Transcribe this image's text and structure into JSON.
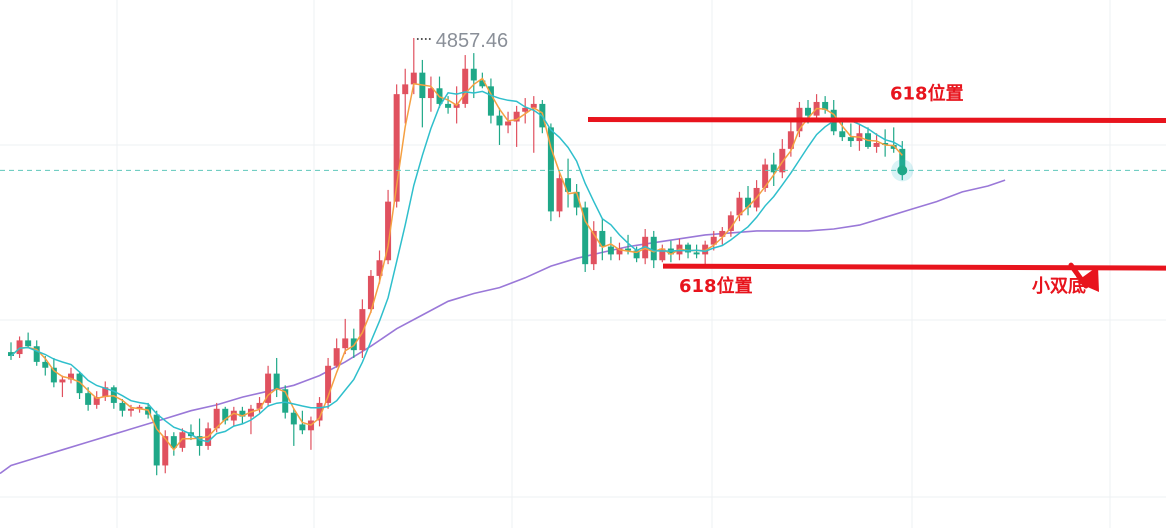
{
  "chart_data": {
    "type": "candlestick",
    "high_label": "4857.46",
    "annotations": {
      "top_level_label": "618位置",
      "bottom_level_label": "618位置",
      "pattern_label": "小双底"
    },
    "colors": {
      "up": "#e0515f",
      "down": "#1fa888",
      "ma_short": "#f5a042",
      "ma_mid": "#2fbfcc",
      "ma_long": "#9a78d8",
      "annotation": "#e8141d",
      "dashed": "#5fc8bb",
      "grid": "#eef0f3"
    },
    "candles": [
      [
        4536,
        4546,
        4528,
        4532
      ],
      [
        4534,
        4552,
        4530,
        4548
      ],
      [
        4548,
        4556,
        4540,
        4542
      ],
      [
        4542,
        4548,
        4522,
        4526
      ],
      [
        4526,
        4532,
        4512,
        4520
      ],
      [
        4520,
        4530,
        4500,
        4505
      ],
      [
        4505,
        4512,
        4490,
        4508
      ],
      [
        4508,
        4520,
        4504,
        4514
      ],
      [
        4514,
        4516,
        4488,
        4494
      ],
      [
        4494,
        4500,
        4476,
        4482
      ],
      [
        4482,
        4496,
        4478,
        4490
      ],
      [
        4490,
        4506,
        4486,
        4500
      ],
      [
        4500,
        4502,
        4478,
        4484
      ],
      [
        4484,
        4488,
        4470,
        4476
      ],
      [
        4476,
        4482,
        4470,
        4478
      ],
      [
        4478,
        4482,
        4474,
        4480
      ],
      [
        4480,
        4484,
        4468,
        4472
      ],
      [
        4472,
        4476,
        4410,
        4420
      ],
      [
        4420,
        4456,
        4412,
        4450
      ],
      [
        4450,
        4454,
        4430,
        4438
      ],
      [
        4438,
        4458,
        4434,
        4454
      ],
      [
        4454,
        4462,
        4446,
        4450
      ],
      [
        4450,
        4468,
        4430,
        4440
      ],
      [
        4440,
        4464,
        4436,
        4458
      ],
      [
        4458,
        4484,
        4454,
        4478
      ],
      [
        4478,
        4480,
        4462,
        4466
      ],
      [
        4466,
        4480,
        4460,
        4476
      ],
      [
        4476,
        4480,
        4462,
        4470
      ],
      [
        4470,
        4482,
        4452,
        4478
      ],
      [
        4478,
        4490,
        4474,
        4484
      ],
      [
        4484,
        4522,
        4480,
        4514
      ],
      [
        4514,
        4530,
        4490,
        4498
      ],
      [
        4498,
        4502,
        4468,
        4474
      ],
      [
        4474,
        4478,
        4440,
        4462
      ],
      [
        4462,
        4476,
        4452,
        4456
      ],
      [
        4456,
        4470,
        4436,
        4466
      ],
      [
        4466,
        4490,
        4460,
        4484
      ],
      [
        4484,
        4530,
        4478,
        4522
      ],
      [
        4522,
        4550,
        4520,
        4540
      ],
      [
        4540,
        4570,
        4534,
        4550
      ],
      [
        4550,
        4560,
        4530,
        4538
      ],
      [
        4538,
        4590,
        4530,
        4580
      ],
      [
        4580,
        4620,
        4576,
        4614
      ],
      [
        4614,
        4640,
        4606,
        4630
      ],
      [
        4630,
        4702,
        4626,
        4690
      ],
      [
        4690,
        4810,
        4684,
        4800
      ],
      [
        4800,
        4826,
        4770,
        4810
      ],
      [
        4810,
        4857.46,
        4800,
        4822
      ],
      [
        4822,
        4835,
        4766,
        4796
      ],
      [
        4796,
        4818,
        4782,
        4806
      ],
      [
        4806,
        4818,
        4786,
        4790
      ],
      [
        4790,
        4798,
        4780,
        4786
      ],
      [
        4786,
        4808,
        4770,
        4790
      ],
      [
        4790,
        4840,
        4786,
        4826
      ],
      [
        4826,
        4842,
        4796,
        4814
      ],
      [
        4814,
        4822,
        4806,
        4808
      ],
      [
        4808,
        4816,
        4770,
        4778
      ],
      [
        4778,
        4786,
        4748,
        4768
      ],
      [
        4768,
        4782,
        4760,
        4772
      ],
      [
        4772,
        4788,
        4746,
        4782
      ],
      [
        4782,
        4796,
        4770,
        4786
      ],
      [
        4786,
        4798,
        4740,
        4790
      ],
      [
        4790,
        4794,
        4760,
        4766
      ],
      [
        4766,
        4770,
        4670,
        4680
      ],
      [
        4680,
        4720,
        4674,
        4714
      ],
      [
        4714,
        4734,
        4684,
        4700
      ],
      [
        4700,
        4708,
        4676,
        4684
      ],
      [
        4684,
        4690,
        4618,
        4626
      ],
      [
        4626,
        4670,
        4620,
        4660
      ],
      [
        4660,
        4672,
        4630,
        4644
      ],
      [
        4644,
        4654,
        4630,
        4636
      ],
      [
        4636,
        4648,
        4630,
        4642
      ],
      [
        4642,
        4656,
        4636,
        4640
      ],
      [
        4640,
        4644,
        4628,
        4632
      ],
      [
        4632,
        4662,
        4626,
        4654
      ],
      [
        4654,
        4660,
        4622,
        4630
      ],
      [
        4630,
        4646,
        4628,
        4642
      ],
      [
        4642,
        4650,
        4628,
        4636
      ],
      [
        4636,
        4652,
        4630,
        4646
      ],
      [
        4646,
        4648,
        4632,
        4638
      ],
      [
        4638,
        4646,
        4632,
        4636
      ],
      [
        4636,
        4650,
        4626,
        4646
      ],
      [
        4646,
        4660,
        4640,
        4654
      ],
      [
        4654,
        4664,
        4646,
        4660
      ],
      [
        4660,
        4680,
        4654,
        4676
      ],
      [
        4676,
        4700,
        4670,
        4694
      ],
      [
        4694,
        4706,
        4676,
        4684
      ],
      [
        4684,
        4712,
        4680,
        4704
      ],
      [
        4704,
        4734,
        4700,
        4728
      ],
      [
        4728,
        4740,
        4706,
        4720
      ],
      [
        4720,
        4754,
        4714,
        4744
      ],
      [
        4744,
        4772,
        4736,
        4762
      ],
      [
        4762,
        4792,
        4756,
        4786
      ],
      [
        4786,
        4794,
        4770,
        4778
      ],
      [
        4778,
        4800,
        4774,
        4792
      ],
      [
        4792,
        4798,
        4780,
        4784
      ],
      [
        4784,
        4794,
        4758,
        4762
      ],
      [
        4762,
        4776,
        4752,
        4756
      ],
      [
        4756,
        4770,
        4746,
        4752
      ],
      [
        4752,
        4770,
        4742,
        4760
      ],
      [
        4760,
        4766,
        4744,
        4746
      ],
      [
        4746,
        4760,
        4740,
        4750
      ],
      [
        4750,
        4764,
        4736,
        4748
      ],
      [
        4748,
        4766,
        4740,
        4744
      ],
      [
        4744,
        4752,
        4712,
        4720
      ]
    ],
    "ma_long": [
      4420,
      4428,
      4436,
      4444,
      4452,
      4460,
      4468,
      4476,
      4482,
      4490,
      4496,
      4502,
      4512,
      4526,
      4542,
      4560,
      4574,
      4588,
      4596,
      4602,
      4612,
      4624,
      4632,
      4638,
      4644,
      4648,
      4652,
      4656,
      4658,
      4660,
      4660,
      4660,
      4662,
      4666,
      4674,
      4682,
      4690,
      4700,
      4706,
      4712
    ],
    "ma_long_x": [
      0,
      3,
      6,
      9,
      12,
      15,
      18,
      21,
      24,
      27,
      30,
      33,
      36,
      39,
      42,
      45,
      48,
      51,
      54,
      57,
      60,
      63,
      66,
      69,
      72,
      75,
      78,
      81,
      84,
      87,
      90,
      93,
      96,
      99,
      102,
      105,
      108,
      111,
      114,
      116
    ],
    "high_index": 47,
    "levels": {
      "top": 4774,
      "bottom": 4624,
      "dashed": 4722
    }
  }
}
